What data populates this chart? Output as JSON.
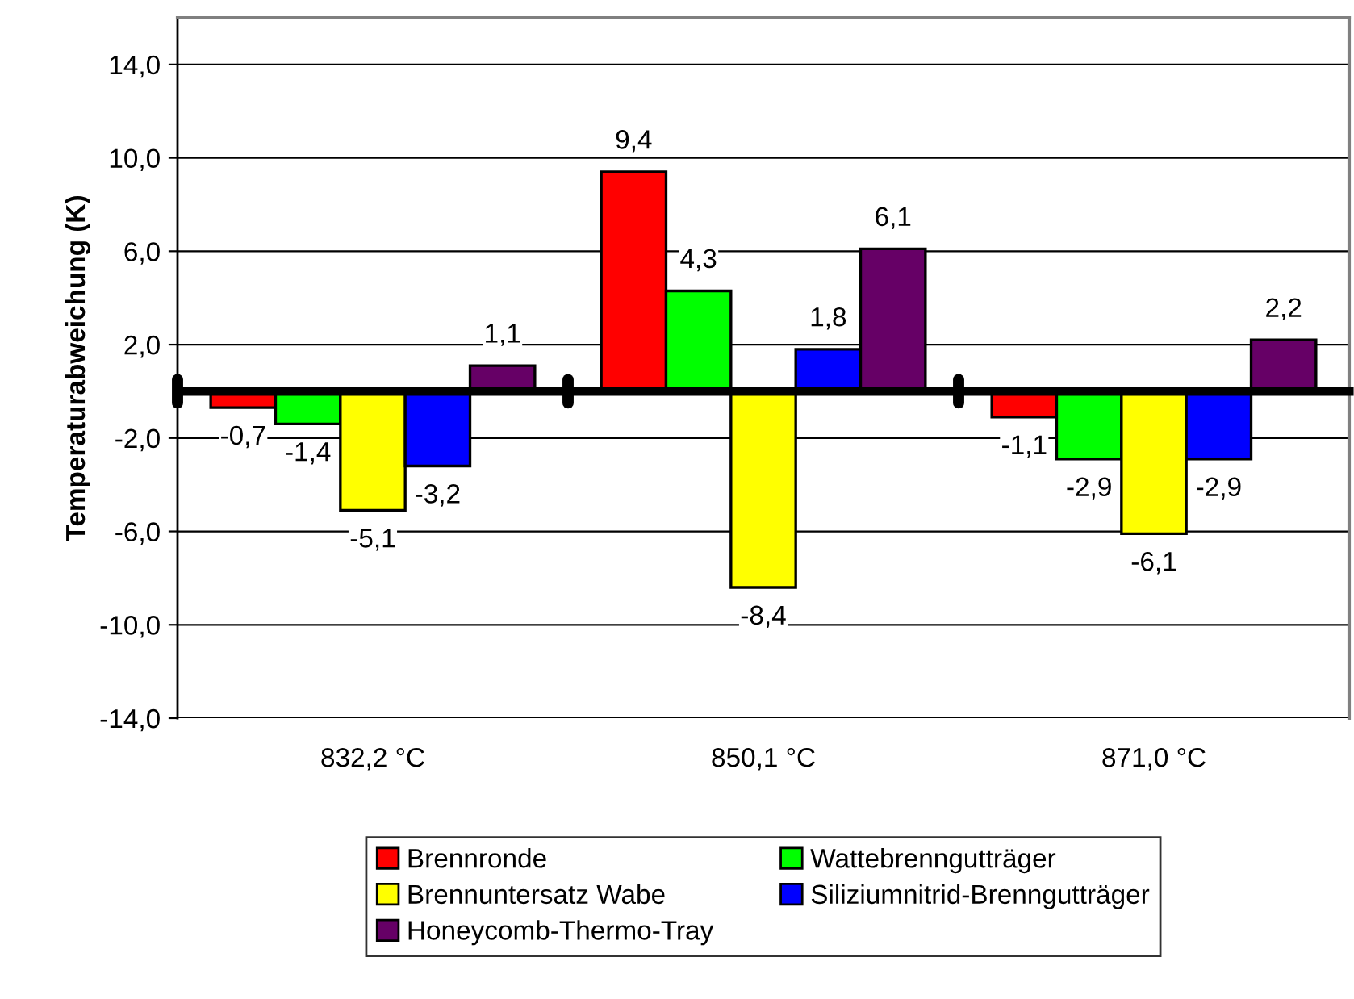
{
  "chart_data": {
    "type": "bar",
    "ylabel": "Temperaturabweichung (K)",
    "categories": [
      "832,2 °C",
      "850,1 °C",
      "871,0 °C"
    ],
    "series": [
      {
        "name": "Brennronde",
        "color": "#ff0000",
        "values": [
          -0.7,
          9.4,
          -1.1
        ],
        "value_labels": [
          "-0,7",
          "9,4",
          "-1,1"
        ]
      },
      {
        "name": "Wattebrenngutträger",
        "color": "#00ff00",
        "values": [
          -1.4,
          4.3,
          -2.9
        ],
        "value_labels": [
          "-1,4",
          "4,3",
          "-2,9"
        ]
      },
      {
        "name": "Brennuntersatz Wabe",
        "color": "#ffff00",
        "values": [
          -5.1,
          -8.4,
          -6.1
        ],
        "value_labels": [
          "-5,1",
          "-8,4",
          "-6,1"
        ]
      },
      {
        "name": "Siliziumnitrid-Brenngutträger",
        "color": "#0000ff",
        "values": [
          -3.2,
          1.8,
          -2.9
        ],
        "value_labels": [
          "-3,2",
          "1,8",
          "-2,9"
        ]
      },
      {
        "name": "Honeycomb-Thermo-Tray",
        "color": "#660066",
        "values": [
          1.1,
          6.1,
          2.2
        ],
        "value_labels": [
          "1,1",
          "6,1",
          "2,2"
        ]
      }
    ],
    "ylim": [
      -14,
      16
    ],
    "yticks": [
      {
        "value": -14,
        "label": "-14,0"
      },
      {
        "value": -10,
        "label": "-10,0"
      },
      {
        "value": -6,
        "label": "-6,0"
      },
      {
        "value": -2,
        "label": "-2,0"
      },
      {
        "value": 2,
        "label": "2,0"
      },
      {
        "value": 6,
        "label": "6,0"
      },
      {
        "value": 10,
        "label": "10,0"
      },
      {
        "value": 14,
        "label": "14,0"
      }
    ],
    "grid": "y",
    "legend": "bottom"
  }
}
